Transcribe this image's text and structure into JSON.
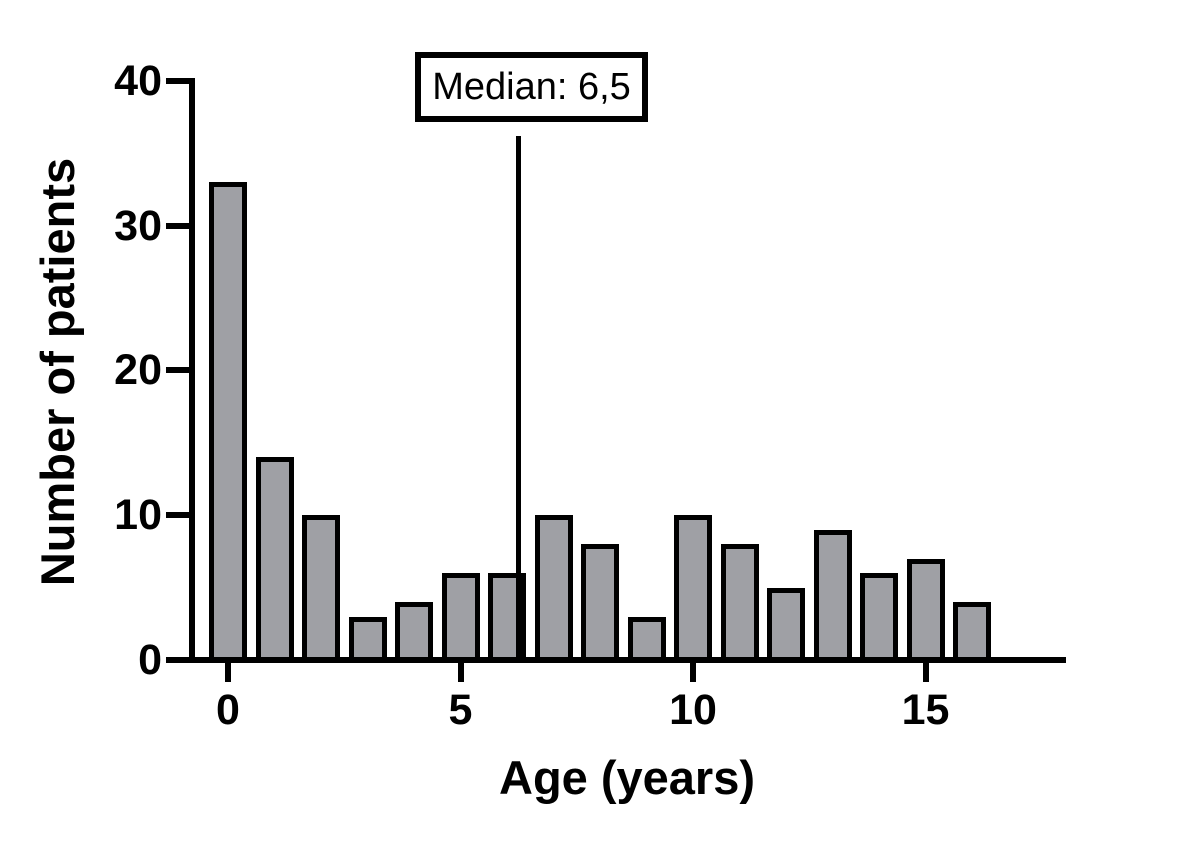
{
  "chart_data": {
    "type": "bar",
    "title": "",
    "xlabel": "Age (years)",
    "ylabel": "Number of patients",
    "categories": [
      0,
      1,
      2,
      3,
      4,
      5,
      6,
      7,
      8,
      9,
      10,
      11,
      12,
      13,
      14,
      15,
      16
    ],
    "values": [
      33,
      14,
      10,
      3,
      4,
      6,
      6,
      10,
      8,
      3,
      10,
      8,
      5,
      9,
      6,
      7,
      4
    ],
    "x_tick_values": [
      0,
      5,
      10,
      15
    ],
    "x_tick_labels": [
      "0",
      "5",
      "10",
      "15"
    ],
    "y_tick_values": [
      0,
      10,
      20,
      30,
      40
    ],
    "y_tick_labels": [
      "0",
      "10",
      "20",
      "30",
      "40"
    ],
    "ylim": [
      0,
      40
    ],
    "xlim": [
      -1.3,
      18
    ],
    "grid": false,
    "legend": null,
    "annotation": {
      "label": "Median: 6,5",
      "line_x": 6.25
    },
    "colors": {
      "bar_fill": "#9fa0a5",
      "bar_border": "#000000",
      "axis": "#000000",
      "background": "#ffffff",
      "text": "#000000"
    }
  }
}
